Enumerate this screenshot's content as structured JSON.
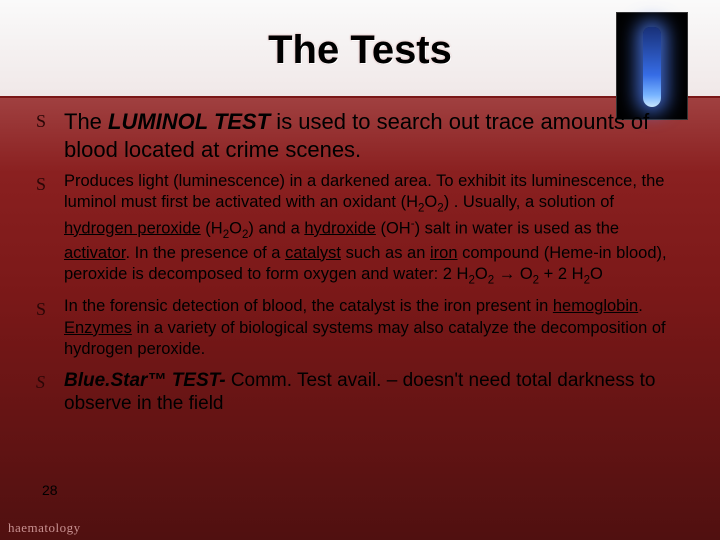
{
  "title": "The Tests",
  "page_number": "28",
  "footer": "haematology",
  "colors": {
    "band_bg_top": "#fafafa",
    "band_bg_bottom": "#f0e8e8",
    "red_grad_top": "#a04040",
    "red_grad_mid": "#7a1818",
    "red_grad_bottom": "#501010",
    "text": "#000000",
    "footer_text": "#c89090",
    "glow_blue": "#5090ff"
  },
  "bullets": {
    "main_a": "The ",
    "main_b": "LUMINOL TEST",
    "main_c": " is used to search out trace amounts of blood located at crime scenes.",
    "sub1_a": "Produces light (luminescence) in a darkened area. To exhibit its luminescence, the luminol must first be activated with an oxidant (H",
    "sub1_b": "O",
    "sub1_c": ") . Usually, a solution of ",
    "sub1_d": "hydrogen peroxide",
    "sub1_e": " (H",
    "sub1_f": "O",
    "sub1_g": ") and a ",
    "sub1_h": "hydroxide",
    "sub1_i": " (OH",
    "sub1_j": ") salt in water is used as the ",
    "sub1_k": "activator",
    "sub1_l": ". In the presence of a ",
    "sub1_m": "catalyst",
    "sub1_n": " such as an ",
    "sub1_o": "iron",
    "sub1_p": " compound (Heme-in blood), peroxide is decomposed to form oxygen and water: 2 H",
    "sub1_q": "O",
    "sub1_r": " → O",
    "sub1_s": " + 2 H",
    "sub1_t": "O",
    "sub2_a": "In the forensic detection of blood, the catalyst is the iron present in ",
    "sub2_b": "hemoglobin",
    "sub2_c": ". ",
    "sub2_d": "Enzymes",
    "sub2_e": " in a variety of biological systems may also catalyze the decomposition of hydrogen peroxide.",
    "last_a": "Blue.Star™ TEST- ",
    "last_b": "Comm. Test avail. – doesn't need total darkness to observe in the field"
  }
}
